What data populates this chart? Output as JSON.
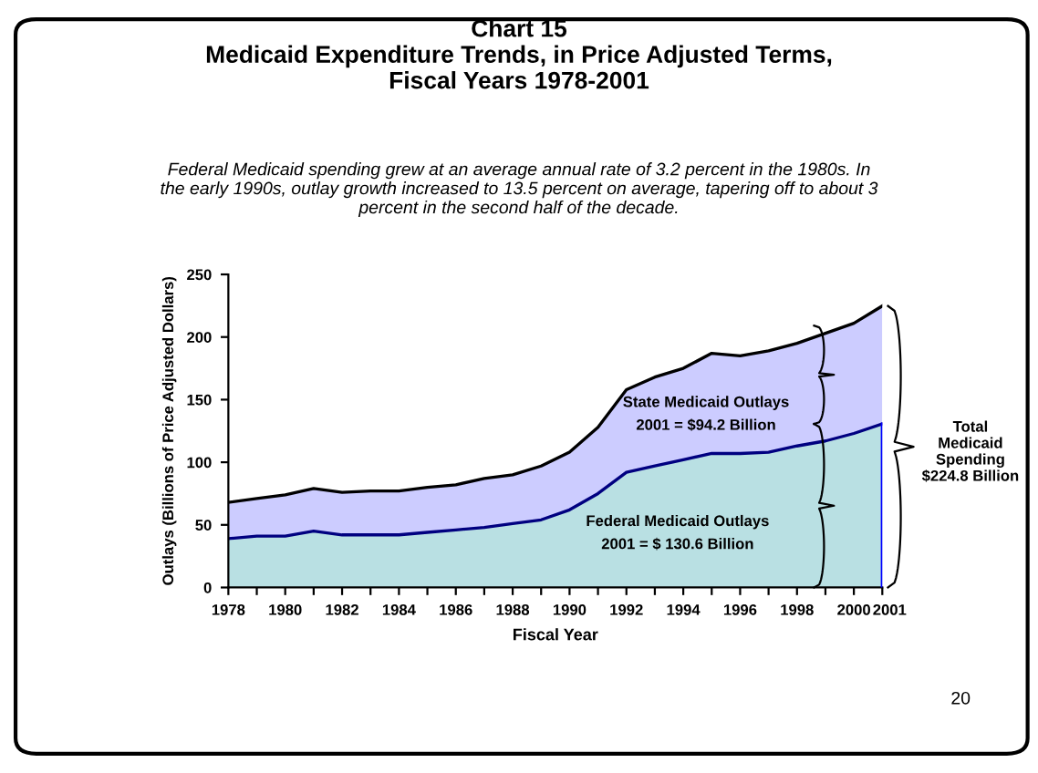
{
  "chart_data": {
    "type": "area",
    "stacked": true,
    "title": "Chart 15\nMedicaid Expenditure Trends, in Price Adjusted Terms,\nFiscal Years 1978-2001",
    "subtitle": "Federal Medicaid spending grew at an average annual rate of 3.2 percent in the 1980s. In\nthe early 1990s, outlay growth increased to 13.5 percent on average, tapering off to about 3\npercent in the second half of the decade.",
    "xlabel": "Fiscal Year",
    "ylabel": "Outlays (Billions of Price Adjusted Dollars)",
    "x": [
      1978,
      1979,
      1980,
      1981,
      1982,
      1983,
      1984,
      1985,
      1986,
      1987,
      1988,
      1989,
      1990,
      1991,
      1992,
      1993,
      1994,
      1995,
      1996,
      1997,
      1998,
      1999,
      2000,
      2001
    ],
    "series": [
      {
        "color": "#b9e0e3",
        "values": [
          39,
          41,
          41,
          45,
          42,
          42,
          42,
          44,
          46,
          48,
          51,
          54,
          62,
          75,
          92,
          97,
          102,
          107,
          107,
          108,
          113,
          117,
          123,
          130.6
        ]
      },
      {
        "color": "#ccccff",
        "values": [
          29,
          30,
          33,
          34,
          34,
          35,
          35,
          36,
          36,
          39,
          39,
          43,
          46,
          53,
          66,
          71,
          73,
          80,
          78,
          81,
          82,
          86,
          88,
          94.2
        ]
      }
    ],
    "xlim": [
      1978,
      2001
    ],
    "ylim": [
      0,
      250
    ],
    "xticks": [
      1978,
      {
        "value": 1979,
        "label": null
      },
      1980,
      {
        "value": 1981,
        "label": null
      },
      1982,
      {
        "value": 1983,
        "label": null
      },
      1984,
      {
        "value": 1985,
        "label": null
      },
      1986,
      {
        "value": 1987,
        "label": null
      },
      1988,
      {
        "value": 1989,
        "label": null
      },
      1990,
      {
        "value": 1991,
        "label": null
      },
      1992,
      {
        "value": 1993,
        "label": null
      },
      1994,
      {
        "value": 1995,
        "label": null
      },
      1996,
      {
        "value": 1997,
        "label": null
      },
      1998,
      {
        "value": 1999,
        "label": null
      },
      2000,
      2001
    ],
    "yticks": [
      0,
      50,
      100,
      150,
      200,
      250
    ],
    "grid": false,
    "annotations": [
      "Federal Medicaid Outlays\n2001 = $ 130.6 Billion",
      "State Medicaid Outlays\n2001 = $94.2 Billion",
      "Total\nMedicaid\nSpending\n$224.8 Billion",
      "20"
    ]
  }
}
